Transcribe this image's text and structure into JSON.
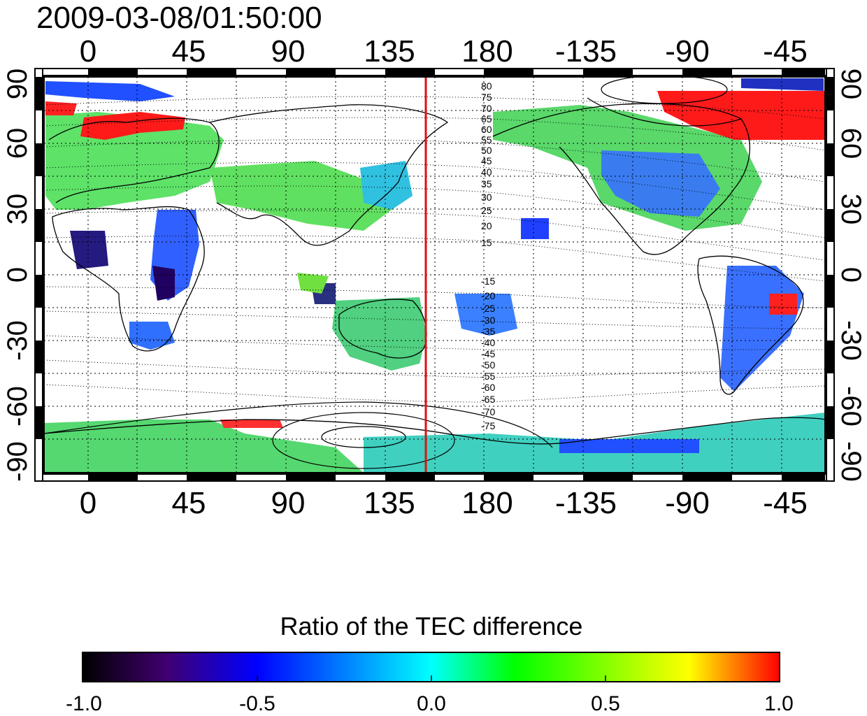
{
  "title": "2009-03-08/01:50:00",
  "top_axis_labels": [
    "0",
    "45",
    "90",
    "135",
    "180",
    "-135",
    "-90",
    "-45"
  ],
  "bottom_axis_labels": [
    "0",
    "45",
    "90",
    "135",
    "180",
    "-135",
    "-90",
    "-45"
  ],
  "left_axis_labels": [
    "90",
    "60",
    "30",
    "0",
    "-30",
    "-60",
    "-90"
  ],
  "right_axis_labels": [
    "90",
    "60",
    "30",
    "0",
    "-30",
    "-60",
    "-90"
  ],
  "north_mlat_labels": [
    "80",
    "75",
    "70",
    "65",
    "60",
    "55",
    "50",
    "45",
    "40",
    "35",
    "30",
    "25",
    "20",
    "15"
  ],
  "south_mlat_labels": [
    "-15",
    "-20",
    "-25",
    "-30",
    "-35",
    "-40",
    "-45",
    "-50",
    "-55",
    "-60",
    "-65",
    "-70",
    "-75"
  ],
  "marker_line_lon_label": "150",
  "colorbar": {
    "title": "Ratio of the TEC difference",
    "ticks": [
      "-1.0",
      "-0.5",
      "0.0",
      "0.5",
      "1.0"
    ],
    "min": -1.0,
    "max": 1.0
  },
  "colors": {
    "marker_line": "#dd1111",
    "frame": "#000000",
    "grid": "#000000"
  }
}
